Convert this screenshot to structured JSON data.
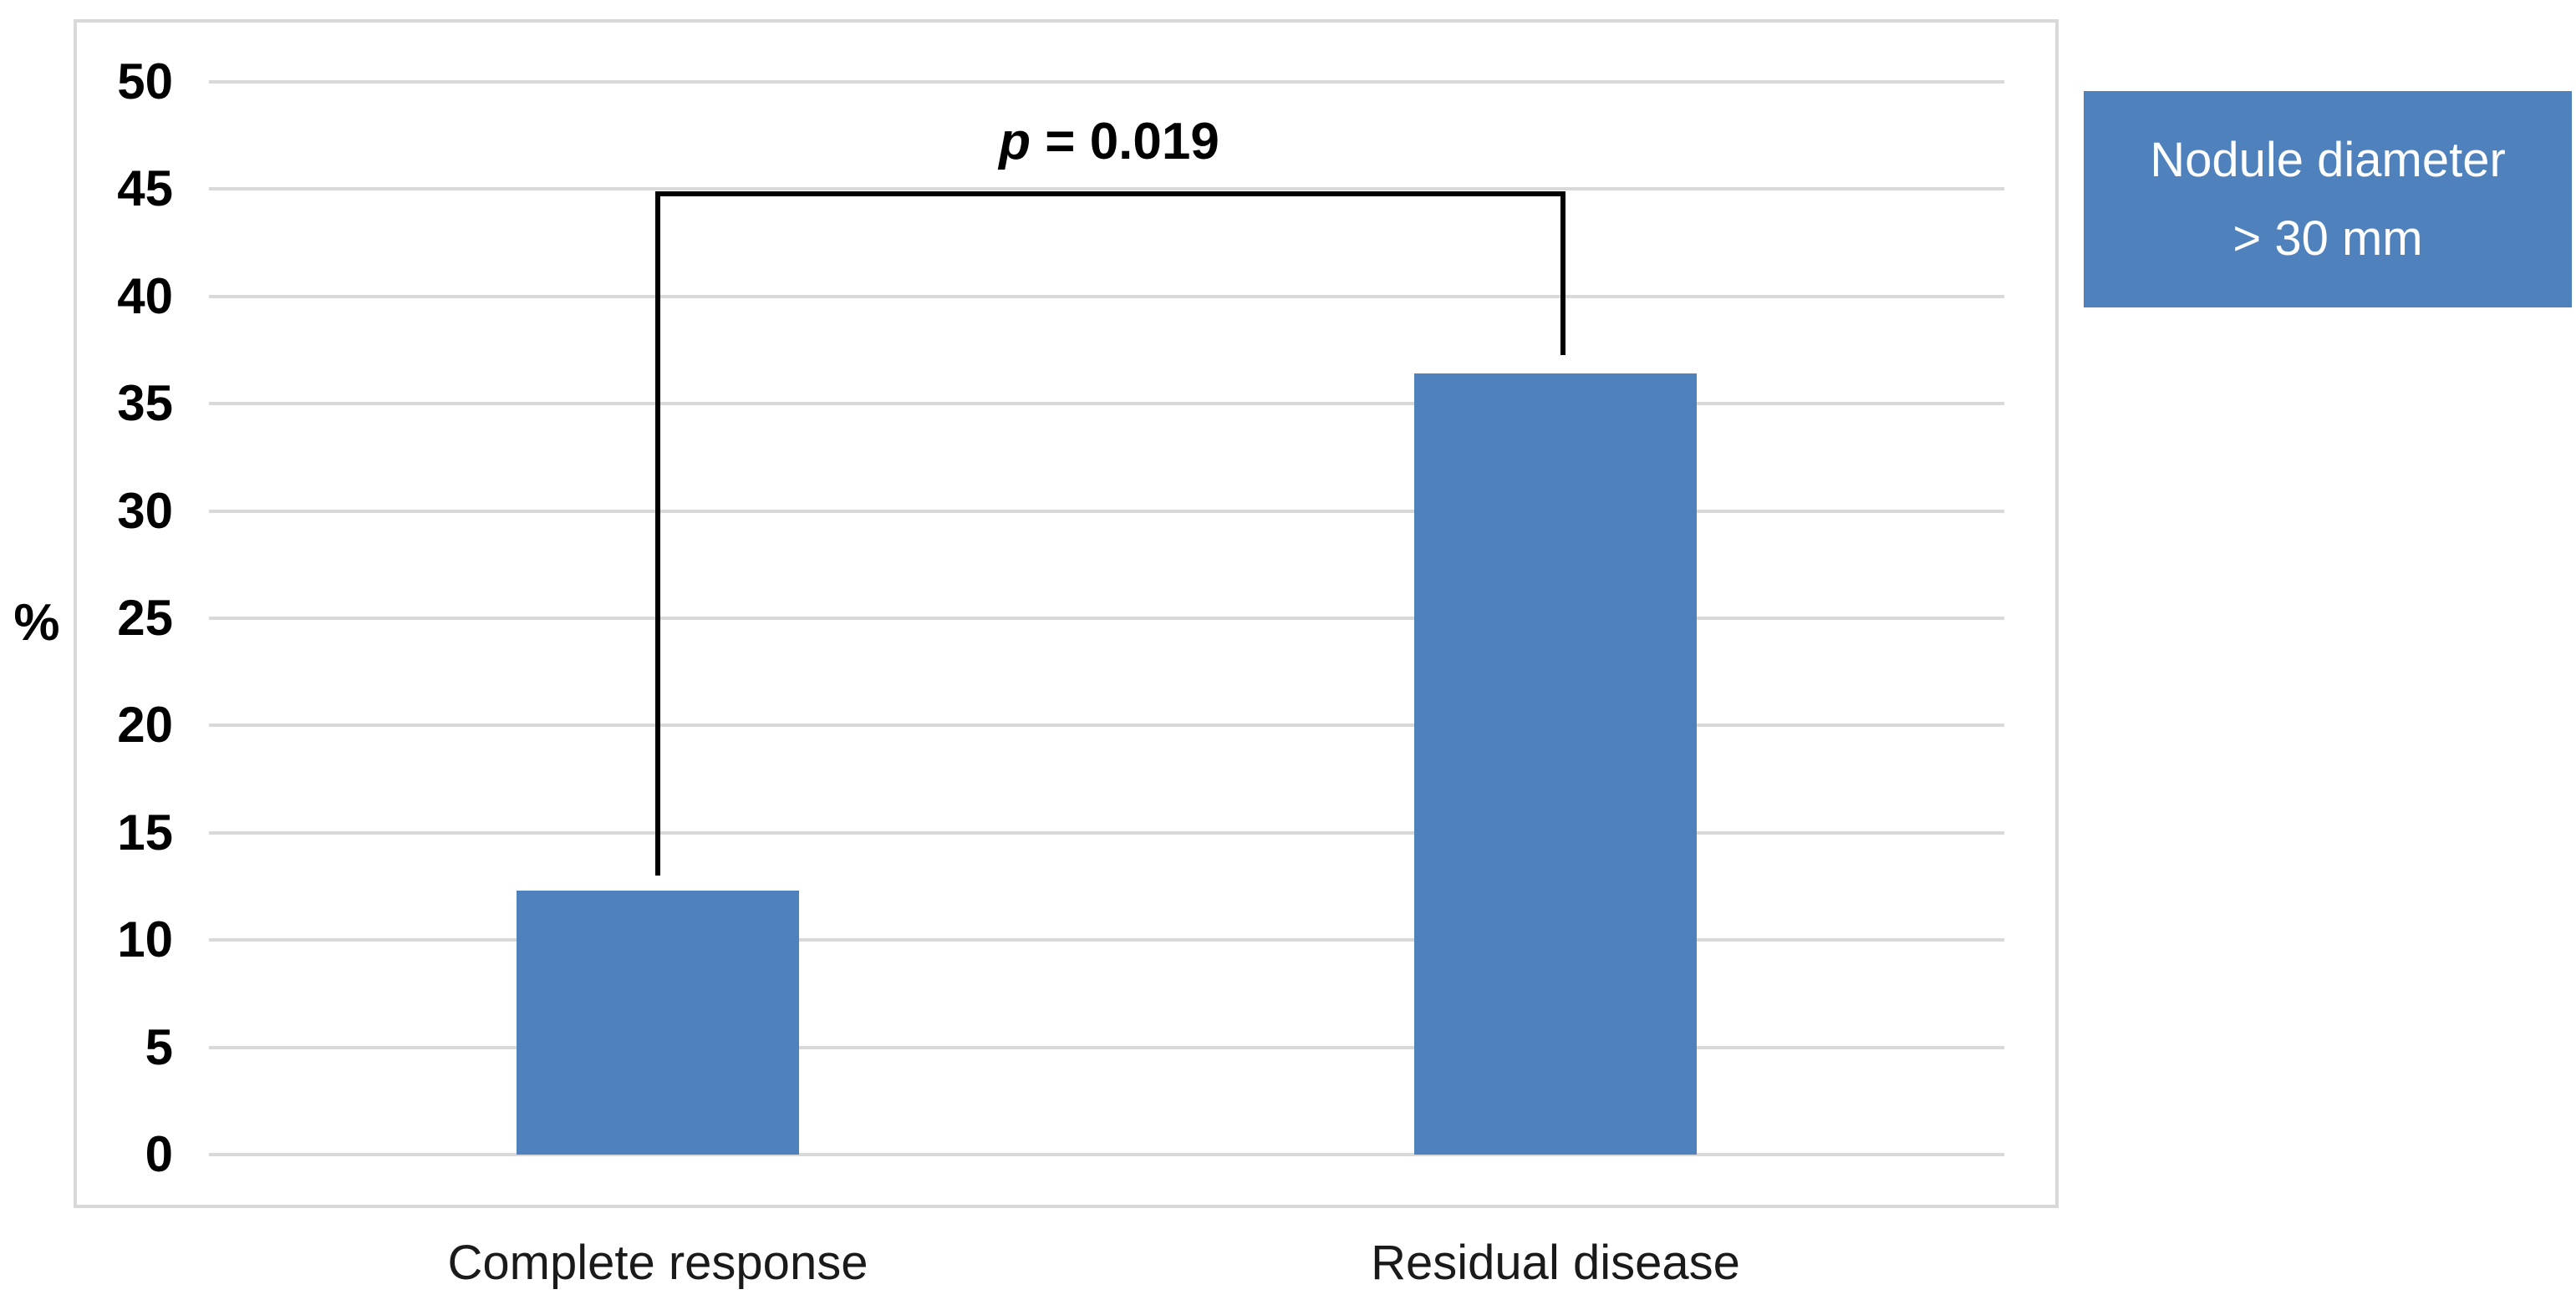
{
  "chart_data": {
    "type": "bar",
    "title": "",
    "xlabel": "",
    "ylabel": "%",
    "categories": [
      "Complete response",
      "Residual disease"
    ],
    "values": [
      12.3,
      36.4
    ],
    "ylim": [
      0,
      50
    ],
    "ytick_step": 5,
    "ytick_labels": [
      "0",
      "5",
      "10",
      "15",
      "20",
      "25",
      "30",
      "35",
      "40",
      "45",
      "50"
    ],
    "grid": true,
    "annotations": {
      "significance": {
        "p_italic": "p",
        "p_rest": " = 0.019",
        "connects": [
          "Complete response",
          "Residual disease"
        ]
      }
    },
    "legend": {
      "lines": [
        "Nodule diameter",
        "> 30 mm"
      ],
      "position": "outside-top-right"
    },
    "colors": {
      "bar": "#4F81BD",
      "legend_bg": "#4F81BD",
      "legend_text": "#FFFFFF",
      "gridline": "#D9D9D9",
      "frame": "#D9D9D9",
      "bracket": "#000000",
      "text": "#000000"
    }
  }
}
